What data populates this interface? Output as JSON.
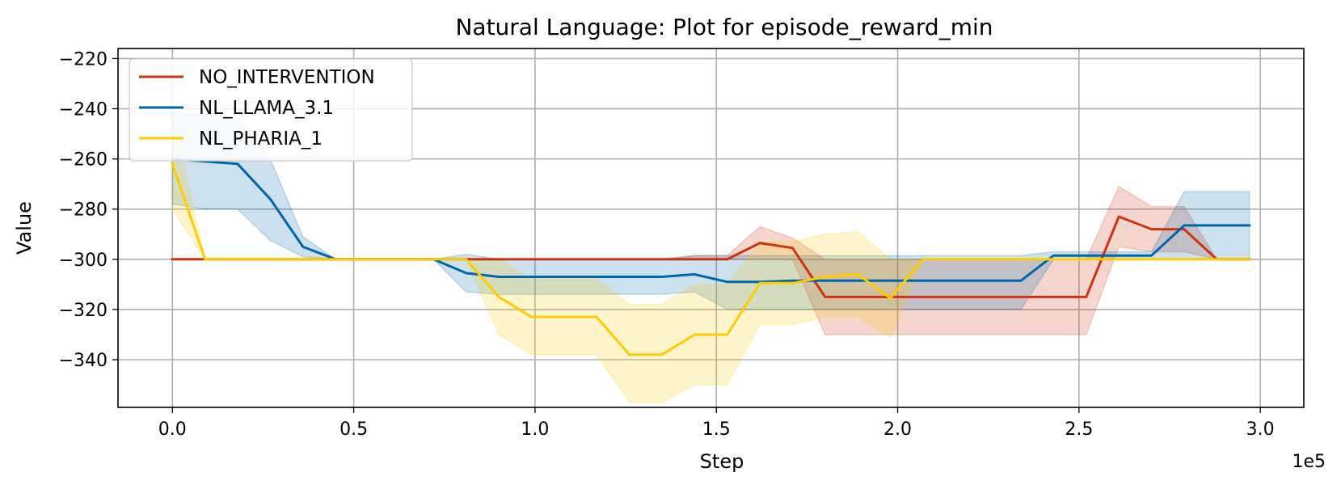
{
  "chart_data": {
    "type": "line",
    "title": "Natural Language: Plot for episode_reward_min",
    "xlabel": "Step",
    "ylabel": "Value",
    "x_offset_label": "1e5",
    "xlim": [
      -15000,
      312000
    ],
    "ylim": [
      -359,
      -216
    ],
    "x_ticks": [
      0,
      50000,
      100000,
      150000,
      200000,
      250000,
      300000
    ],
    "x_tick_labels": [
      "0.0",
      "0.5",
      "1.0",
      "1.5",
      "2.0",
      "2.5",
      "3.0"
    ],
    "y_ticks": [
      -220,
      -240,
      -260,
      -280,
      -300,
      -320,
      -340
    ],
    "y_tick_labels": [
      "−220",
      "−240",
      "−260",
      "−280",
      "−300",
      "−320",
      "−340"
    ],
    "grid": true,
    "legend_position": "top-left",
    "x": [
      0,
      9000,
      18000,
      27000,
      36000,
      45000,
      54000,
      63000,
      72000,
      81000,
      90000,
      99000,
      108000,
      117000,
      126000,
      135000,
      144000,
      153000,
      162000,
      171000,
      180000,
      189000,
      198000,
      207000,
      216000,
      225000,
      234000,
      243000,
      252000,
      261000,
      270000,
      279000,
      288000,
      297000
    ],
    "series": [
      {
        "name": "NO_INTERVENTION",
        "color": "#cc3311",
        "values": [
          -300,
          -300,
          -300,
          -300,
          -300,
          -300,
          -300,
          -300,
          -300,
          -300,
          -300,
          -300,
          -300,
          -300,
          -300,
          -300,
          -300,
          -300,
          -293.5,
          -295.5,
          -315,
          -315,
          -315,
          -315,
          -315,
          -315,
          -315,
          -315,
          -315,
          -283,
          -288,
          -288,
          -300,
          -300
        ],
        "lower": [
          -300,
          -300,
          -300,
          -300,
          -300,
          -300,
          -300,
          -300,
          -300,
          -300,
          -300,
          -300,
          -300,
          -300,
          -300,
          -300,
          -300,
          -300,
          -300,
          -300,
          -330,
          -330,
          -330,
          -330,
          -330,
          -330,
          -330,
          -330,
          -330,
          -295,
          -297,
          -297,
          -300,
          -300
        ],
        "upper": [
          -300,
          -300,
          -300,
          -300,
          -300,
          -300,
          -300,
          -300,
          -300,
          -300,
          -300,
          -300,
          -300,
          -300,
          -300,
          -300,
          -298.5,
          -298.5,
          -287,
          -291.5,
          -300,
          -300,
          -300,
          -300,
          -300,
          -300,
          -300,
          -300,
          -300,
          -271,
          -279,
          -279,
          -300,
          -300
        ]
      },
      {
        "name": "NL_LLAMA_3.1",
        "color": "#0066aa",
        "values": [
          -260,
          -261,
          -262,
          -276,
          -295,
          -300,
          -300,
          -300,
          -300,
          -305.5,
          -307,
          -307,
          -307,
          -307,
          -307,
          -307,
          -306,
          -309,
          -309,
          -308.5,
          -308.5,
          -308.5,
          -308.5,
          -308.5,
          -308.5,
          -308.5,
          -308.5,
          -298.5,
          -298.5,
          -298.5,
          -298.5,
          -286.5,
          -286.5,
          -286.5
        ],
        "lower": [
          -278,
          -280,
          -280,
          -292.5,
          -299,
          -300,
          -300,
          -300,
          -300,
          -313,
          -314,
          -314,
          -314,
          -314,
          -314,
          -314,
          -313,
          -320,
          -320,
          -320,
          -320,
          -320,
          -320,
          -320,
          -320,
          -320,
          -320,
          -300,
          -300,
          -300,
          -300,
          -300,
          -300,
          -300
        ],
        "upper": [
          -242,
          -242,
          -244,
          -260,
          -291,
          -300,
          -300,
          -300,
          -300,
          -298,
          -300,
          -300,
          -300,
          -300,
          -300,
          -300,
          -298.5,
          -298.5,
          -298.5,
          -298.5,
          -298.5,
          -298.5,
          -298.5,
          -298.5,
          -298.5,
          -298.5,
          -298.5,
          -297,
          -297,
          -297,
          -297,
          -273,
          -273,
          -273
        ]
      },
      {
        "name": "NL_PHARIA_1",
        "color": "#ffcc00",
        "values": [
          -262,
          -300,
          -300,
          -300,
          -300,
          -300,
          -300,
          -300,
          -300,
          -300,
          -315,
          -323,
          -323,
          -323,
          -338,
          -338,
          -330,
          -330,
          -309.5,
          -309.5,
          -307,
          -306,
          -315.5,
          -300,
          -300,
          -300,
          -300,
          -300,
          -300,
          -300,
          -300,
          -300,
          -300,
          -300
        ],
        "lower": [
          -280,
          -300,
          -300,
          -300,
          -300,
          -300,
          -300,
          -300,
          -300,
          -300,
          -330,
          -338,
          -338,
          -338,
          -357,
          -357,
          -350,
          -350,
          -326,
          -326,
          -323,
          -323,
          -331,
          -300,
          -300,
          -300,
          -300,
          -300,
          -300,
          -300,
          -300,
          -300,
          -300,
          -300
        ],
        "upper": [
          -244,
          -300,
          -300,
          -300,
          -300,
          -300,
          -300,
          -300,
          -300,
          -300,
          -300,
          -308,
          -308,
          -308,
          -318,
          -318,
          -310,
          -310,
          -293,
          -293,
          -290,
          -289,
          -300,
          -300,
          -300,
          -300,
          -300,
          -300,
          -300,
          -300,
          -300,
          -300,
          -300,
          -300
        ]
      }
    ]
  }
}
